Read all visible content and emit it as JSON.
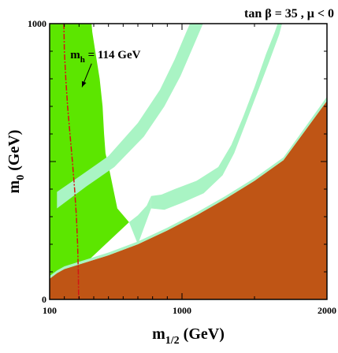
{
  "chart_data": {
    "type": "area",
    "title": "tan β = 35 ,  μ < 0",
    "xlabel": "m",
    "xlabel_sub": "1/2",
    "xlabel_unit": " (GeV)",
    "ylabel": "m",
    "ylabel_sub": "0",
    "ylabel_unit": " (GeV)",
    "xlim": [
      100,
      2000
    ],
    "ylim": [
      0,
      1000
    ],
    "x_ticks": [
      100,
      1000,
      2000
    ],
    "x_tick_labels": [
      "100",
      "1000",
      "2000"
    ],
    "y_ticks": [
      0,
      1000
    ],
    "y_tick_labels": [
      "0",
      "1000"
    ],
    "grid": false,
    "legend": "none",
    "annotation": {
      "label": "m",
      "label_sub": "h",
      "label_value": " = 114 GeV",
      "arrow_from": [
        385,
        855
      ],
      "arrow_to": [
        320,
        770
      ]
    },
    "regions": [
      {
        "name": "excluded-stau-lsp",
        "color": "#bf5515",
        "boundary": [
          [
            100,
            75
          ],
          [
            150,
            95
          ],
          [
            200,
            110
          ],
          [
            350,
            135
          ],
          [
            500,
            160
          ],
          [
            700,
            200
          ],
          [
            900,
            250
          ],
          [
            1100,
            305
          ],
          [
            1300,
            365
          ],
          [
            1500,
            430
          ],
          [
            1700,
            505
          ],
          [
            2000,
            720
          ],
          [
            2000,
            0
          ],
          [
            100,
            0
          ]
        ]
      },
      {
        "name": "excluded-b-to-s-gamma",
        "color": "#5ce600",
        "boundary": [
          [
            100,
            1000
          ],
          [
            385,
            1000
          ],
          [
            390,
            970
          ],
          [
            410,
            900
          ],
          [
            440,
            800
          ],
          [
            460,
            700
          ],
          [
            470,
            600
          ],
          [
            480,
            530
          ],
          [
            510,
            460
          ],
          [
            560,
            330
          ],
          [
            640,
            280
          ],
          [
            350,
            135
          ],
          [
            200,
            110
          ],
          [
            150,
            95
          ],
          [
            100,
            75
          ]
        ]
      },
      {
        "name": "relic-density-band",
        "color": "#a9f4c4",
        "boundary": [
          [
            150,
            390
          ],
          [
            300,
            445
          ],
          [
            500,
            520
          ],
          [
            700,
            640
          ],
          [
            850,
            760
          ],
          [
            950,
            870
          ],
          [
            1030,
            970
          ],
          [
            1055,
            1000
          ],
          [
            1145,
            1000
          ],
          [
            1080,
            920
          ],
          [
            990,
            810
          ],
          [
            880,
            700
          ],
          [
            740,
            590
          ],
          [
            540,
            480
          ],
          [
            350,
            410
          ],
          [
            150,
            330
          ]
        ]
      },
      {
        "name": "relic-density-funnel-right",
        "color": "#a9f4c4",
        "boundary": [
          [
            790,
            375
          ],
          [
            860,
            380
          ],
          [
            950,
            400
          ],
          [
            1100,
            430
          ],
          [
            1250,
            480
          ],
          [
            1340,
            560
          ],
          [
            1420,
            660
          ],
          [
            1500,
            770
          ],
          [
            1580,
            890
          ],
          [
            1640,
            970
          ],
          [
            1660,
            1000
          ],
          [
            1690,
            1000
          ],
          [
            1670,
            960
          ],
          [
            1600,
            860
          ],
          [
            1520,
            750
          ],
          [
            1440,
            640
          ],
          [
            1360,
            530
          ],
          [
            1280,
            450
          ],
          [
            1150,
            385
          ],
          [
            1000,
            350
          ],
          [
            880,
            325
          ],
          [
            790,
            330
          ]
        ]
      },
      {
        "name": "relic-density-funnel-left",
        "color": "#a9f4c4",
        "boundary": [
          [
            640,
            280
          ],
          [
            700,
            305
          ],
          [
            760,
            340
          ],
          [
            790,
            375
          ],
          [
            790,
            330
          ],
          [
            700,
            200
          ]
        ]
      },
      {
        "name": "relic-density-coannihilation-strip",
        "color": "#a9f4c4",
        "boundary": [
          [
            100,
            75
          ],
          [
            150,
            95
          ],
          [
            200,
            110
          ],
          [
            350,
            135
          ],
          [
            500,
            160
          ],
          [
            700,
            200
          ],
          [
            900,
            250
          ],
          [
            1100,
            305
          ],
          [
            1300,
            365
          ],
          [
            1500,
            430
          ],
          [
            1700,
            505
          ],
          [
            2000,
            720
          ],
          [
            2000,
            735
          ],
          [
            1700,
            515
          ],
          [
            1500,
            440
          ],
          [
            1300,
            375
          ],
          [
            1100,
            315
          ],
          [
            900,
            260
          ],
          [
            700,
            210
          ],
          [
            500,
            170
          ],
          [
            350,
            145
          ],
          [
            200,
            120
          ],
          [
            150,
            105
          ],
          [
            100,
            85
          ]
        ]
      }
    ],
    "mh_line": {
      "label": "m_h = 114 GeV",
      "color": "#d21414",
      "x": [
        197,
        200,
        210,
        222,
        238,
        255,
        270,
        282,
        290,
        295,
        297
      ],
      "y": [
        1000,
        900,
        800,
        700,
        600,
        500,
        400,
        300,
        200,
        100,
        0
      ]
    }
  }
}
